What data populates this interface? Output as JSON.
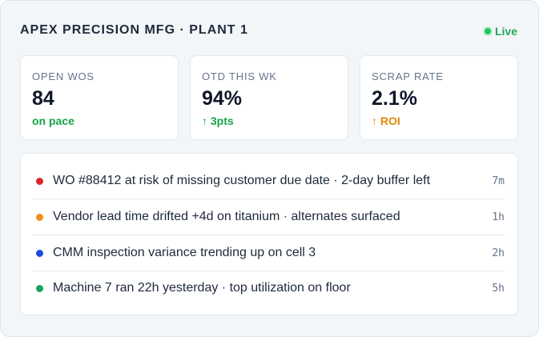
{
  "header": {
    "title": "APEX PRECISION MFG · PLANT 1",
    "status": "Live"
  },
  "kpis": [
    {
      "label": "OPEN WOS",
      "value": "84",
      "note": "on pace"
    },
    {
      "label": "OTD THIS WK",
      "value": "94%",
      "note": "↑ 3pts"
    },
    {
      "label": "SCRAP RATE",
      "value": "2.1%",
      "note": "↑ ROI"
    }
  ],
  "alerts": [
    {
      "text": "WO #88412 at risk of missing customer due date · 2-day buffer left",
      "time": "7m"
    },
    {
      "text": "Vendor lead time drifted +4d on titanium · alternates surfaced",
      "time": "1h"
    },
    {
      "text": "CMM inspection variance trending up on cell 3",
      "time": "2h"
    },
    {
      "text": "Machine 7 ran 22h yesterday · top utilization on floor",
      "time": "5h"
    }
  ]
}
